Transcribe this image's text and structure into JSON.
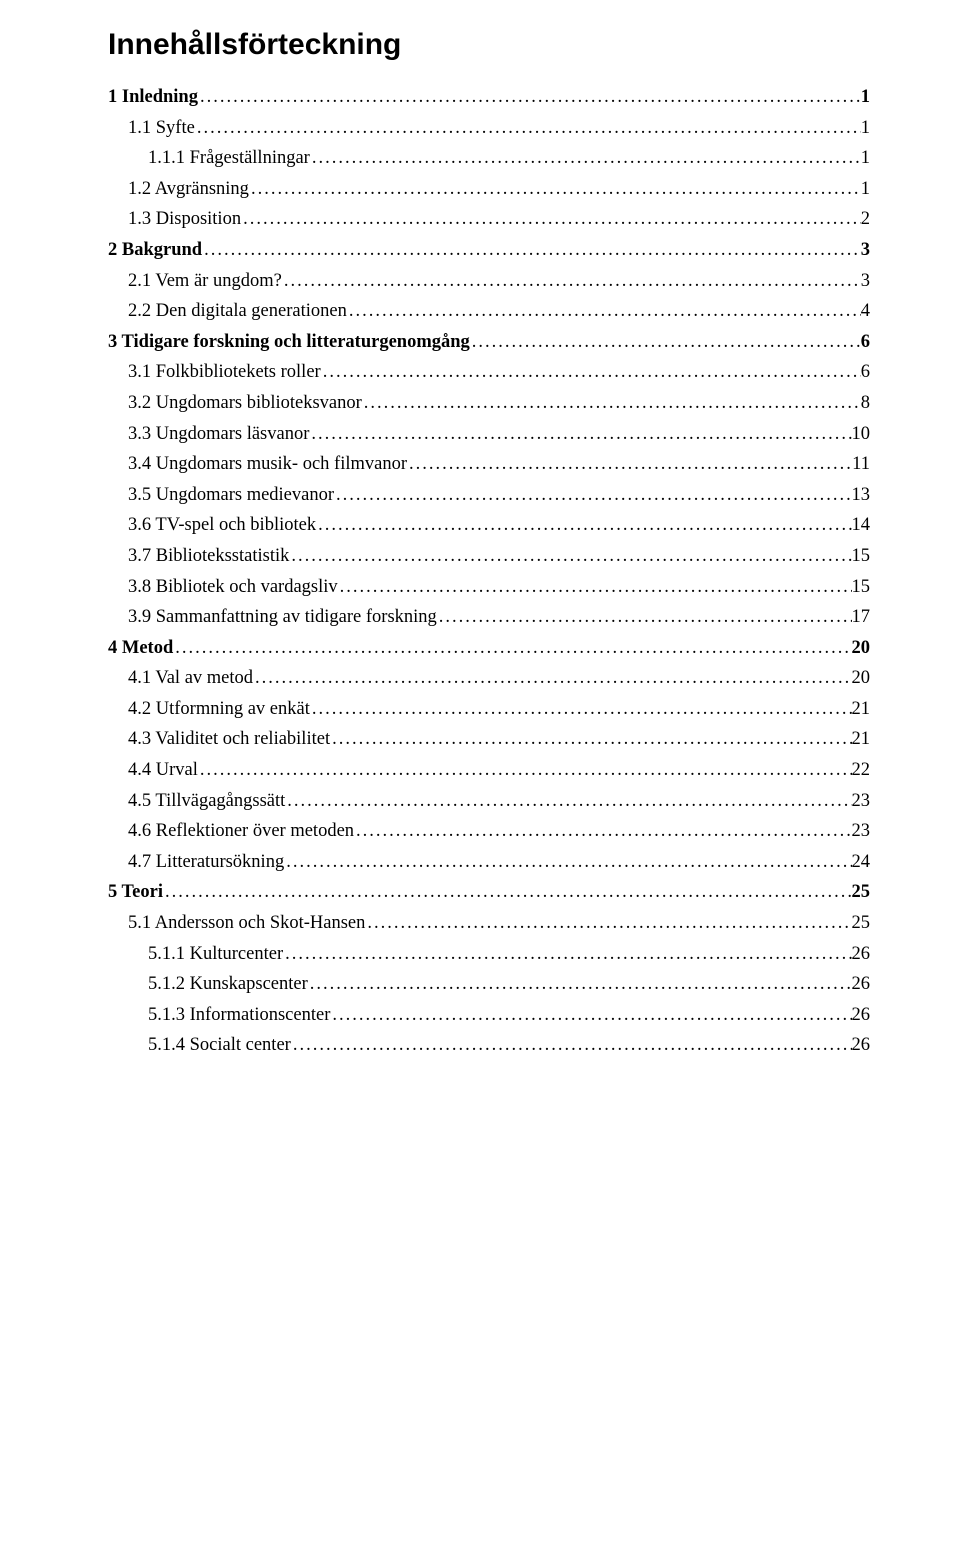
{
  "title": "Innehållsförteckning",
  "entries": [
    {
      "label": "1 Inledning",
      "page": "1",
      "bold": true,
      "indent": 0
    },
    {
      "label": "1.1 Syfte",
      "page": "1",
      "bold": false,
      "indent": 1
    },
    {
      "label": "1.1.1 Frågeställningar",
      "page": "1",
      "bold": false,
      "indent": 2
    },
    {
      "label": "1.2 Avgränsning",
      "page": "1",
      "bold": false,
      "indent": 1
    },
    {
      "label": "1.3 Disposition",
      "page": "2",
      "bold": false,
      "indent": 1
    },
    {
      "label": "2 Bakgrund",
      "page": "3",
      "bold": true,
      "indent": 0
    },
    {
      "label": "2.1 Vem är ungdom?",
      "page": "3",
      "bold": false,
      "indent": 1
    },
    {
      "label": "2.2 Den digitala generationen",
      "page": "4",
      "bold": false,
      "indent": 1
    },
    {
      "label": "3 Tidigare forskning och litteraturgenomgång",
      "page": "6",
      "bold": true,
      "indent": 0
    },
    {
      "label": "3.1 Folkbibliotekets roller",
      "page": "6",
      "bold": false,
      "indent": 1
    },
    {
      "label": "3.2 Ungdomars biblioteksvanor",
      "page": "8",
      "bold": false,
      "indent": 1
    },
    {
      "label": "3.3 Ungdomars läsvanor",
      "page": "10",
      "bold": false,
      "indent": 1
    },
    {
      "label": "3.4 Ungdomars musik- och filmvanor",
      "page": "11",
      "bold": false,
      "indent": 1
    },
    {
      "label": "3.5 Ungdomars medievanor",
      "page": "13",
      "bold": false,
      "indent": 1
    },
    {
      "label": "3.6 TV-spel och bibliotek",
      "page": "14",
      "bold": false,
      "indent": 1
    },
    {
      "label": "3.7 Biblioteksstatistik",
      "page": "15",
      "bold": false,
      "indent": 1
    },
    {
      "label": "3.8 Bibliotek och vardagsliv",
      "page": "15",
      "bold": false,
      "indent": 1
    },
    {
      "label": "3.9 Sammanfattning av tidigare forskning",
      "page": "17",
      "bold": false,
      "indent": 1
    },
    {
      "label": "4 Metod",
      "page": "20",
      "bold": true,
      "indent": 0
    },
    {
      "label": "4.1 Val av metod",
      "page": "20",
      "bold": false,
      "indent": 1
    },
    {
      "label": "4.2 Utformning av enkät",
      "page": "21",
      "bold": false,
      "indent": 1
    },
    {
      "label": "4.3 Validitet och reliabilitet",
      "page": "21",
      "bold": false,
      "indent": 1
    },
    {
      "label": "4.4 Urval",
      "page": "22",
      "bold": false,
      "indent": 1
    },
    {
      "label": "4.5 Tillvägagångssätt",
      "page": "23",
      "bold": false,
      "indent": 1
    },
    {
      "label": "4.6 Reflektioner över metoden",
      "page": "23",
      "bold": false,
      "indent": 1
    },
    {
      "label": "4.7 Litteratursökning",
      "page": "24",
      "bold": false,
      "indent": 1
    },
    {
      "label": "5 Teori",
      "page": "25",
      "bold": true,
      "indent": 0
    },
    {
      "label": "5.1 Andersson och Skot-Hansen",
      "page": "25",
      "bold": false,
      "indent": 1
    },
    {
      "label": "5.1.1 Kulturcenter",
      "page": "26",
      "bold": false,
      "indent": 2
    },
    {
      "label": "5.1.2 Kunskapscenter",
      "page": "26",
      "bold": false,
      "indent": 2
    },
    {
      "label": "5.1.3 Informationscenter",
      "page": "26",
      "bold": false,
      "indent": 2
    },
    {
      "label": "5.1.4 Socialt center",
      "page": "26",
      "bold": false,
      "indent": 2
    }
  ]
}
